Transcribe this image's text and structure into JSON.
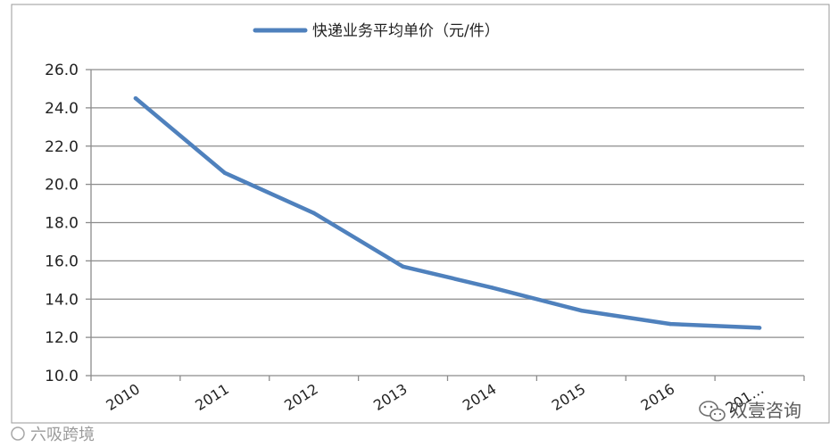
{
  "chart_data": {
    "type": "line",
    "categories": [
      "2010",
      "2011",
      "2012",
      "2013",
      "2014",
      "2015",
      "2016",
      "201…"
    ],
    "series": [
      {
        "name": "快递业务平均单价（元/件）",
        "values": [
          24.5,
          20.6,
          18.5,
          15.7,
          14.6,
          13.4,
          12.7,
          12.5
        ],
        "color": "#4f81bd"
      }
    ],
    "yticks": [
      "10.0",
      "12.0",
      "14.0",
      "16.0",
      "18.0",
      "20.0",
      "22.0",
      "24.0",
      "26.0"
    ],
    "ylim": [
      10,
      26
    ],
    "grid": true,
    "legend": "top-center",
    "title": "",
    "xlabel": "",
    "ylabel": ""
  },
  "watermark": {
    "left_text": "六吸跨境",
    "right_text": "双壹咨询",
    "right_icon": "wechat-icon"
  }
}
